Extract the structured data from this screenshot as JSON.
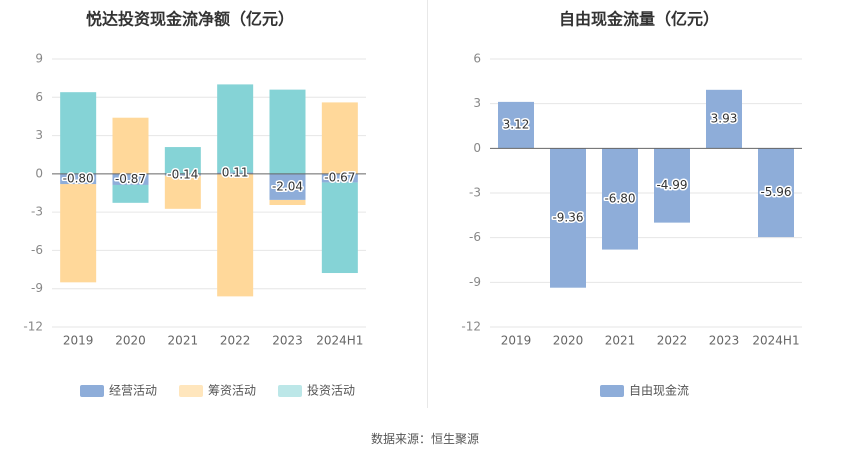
{
  "colors": {
    "operating": "#8eadd9",
    "financing": "#ffd89a",
    "investing": "#85d3d6",
    "free_cash_flow": "#8eadd9",
    "grid": "#e6e6e6",
    "zero_line": "#666666"
  },
  "source_text": "数据来源：恒生聚源",
  "chart_data": [
    {
      "type": "bar",
      "stacked": true,
      "title": "悦达投资现金流净额（亿元）",
      "categories": [
        "2019",
        "2020",
        "2021",
        "2022",
        "2023",
        "2024H1"
      ],
      "ylim": [
        -12,
        9
      ],
      "yticks": [
        9,
        6,
        3,
        0,
        -3,
        -6,
        -9,
        -12
      ],
      "grid": true,
      "series": [
        {
          "name": "经营活动",
          "color_key": "operating",
          "values": [
            -0.8,
            -0.87,
            -0.14,
            0.11,
            -2.04,
            -0.67
          ],
          "labels": [
            "-0.80",
            "-0.87",
            "-0.14",
            "0.11",
            "-2.04",
            "-0.67"
          ]
        },
        {
          "name": "筹资活动",
          "color_key": "financing",
          "values": [
            -7.7,
            4.4,
            -2.6,
            -9.6,
            -0.4,
            5.6
          ]
        },
        {
          "name": "投资活动",
          "color_key": "investing",
          "values": [
            6.4,
            -1.4,
            2.1,
            6.9,
            6.6,
            -7.1
          ]
        }
      ],
      "legend": [
        "经营活动",
        "筹资活动",
        "投资活动"
      ],
      "legend_position": "bottom"
    },
    {
      "type": "bar",
      "title": "自由现金流量（亿元）",
      "categories": [
        "2019",
        "2020",
        "2021",
        "2022",
        "2023",
        "2024H1"
      ],
      "ylim": [
        -12,
        6
      ],
      "yticks": [
        6,
        3,
        0,
        -3,
        -6,
        -9,
        -12
      ],
      "grid": true,
      "series": [
        {
          "name": "自由现金流",
          "color_key": "free_cash_flow",
          "values": [
            3.12,
            -9.36,
            -6.8,
            -4.99,
            3.93,
            -5.96
          ],
          "labels": [
            "3.12",
            "-9.36",
            "-6.80",
            "-4.99",
            "3.93",
            "-5.96"
          ]
        }
      ],
      "legend": [
        "自由现金流"
      ],
      "legend_position": "bottom"
    }
  ]
}
